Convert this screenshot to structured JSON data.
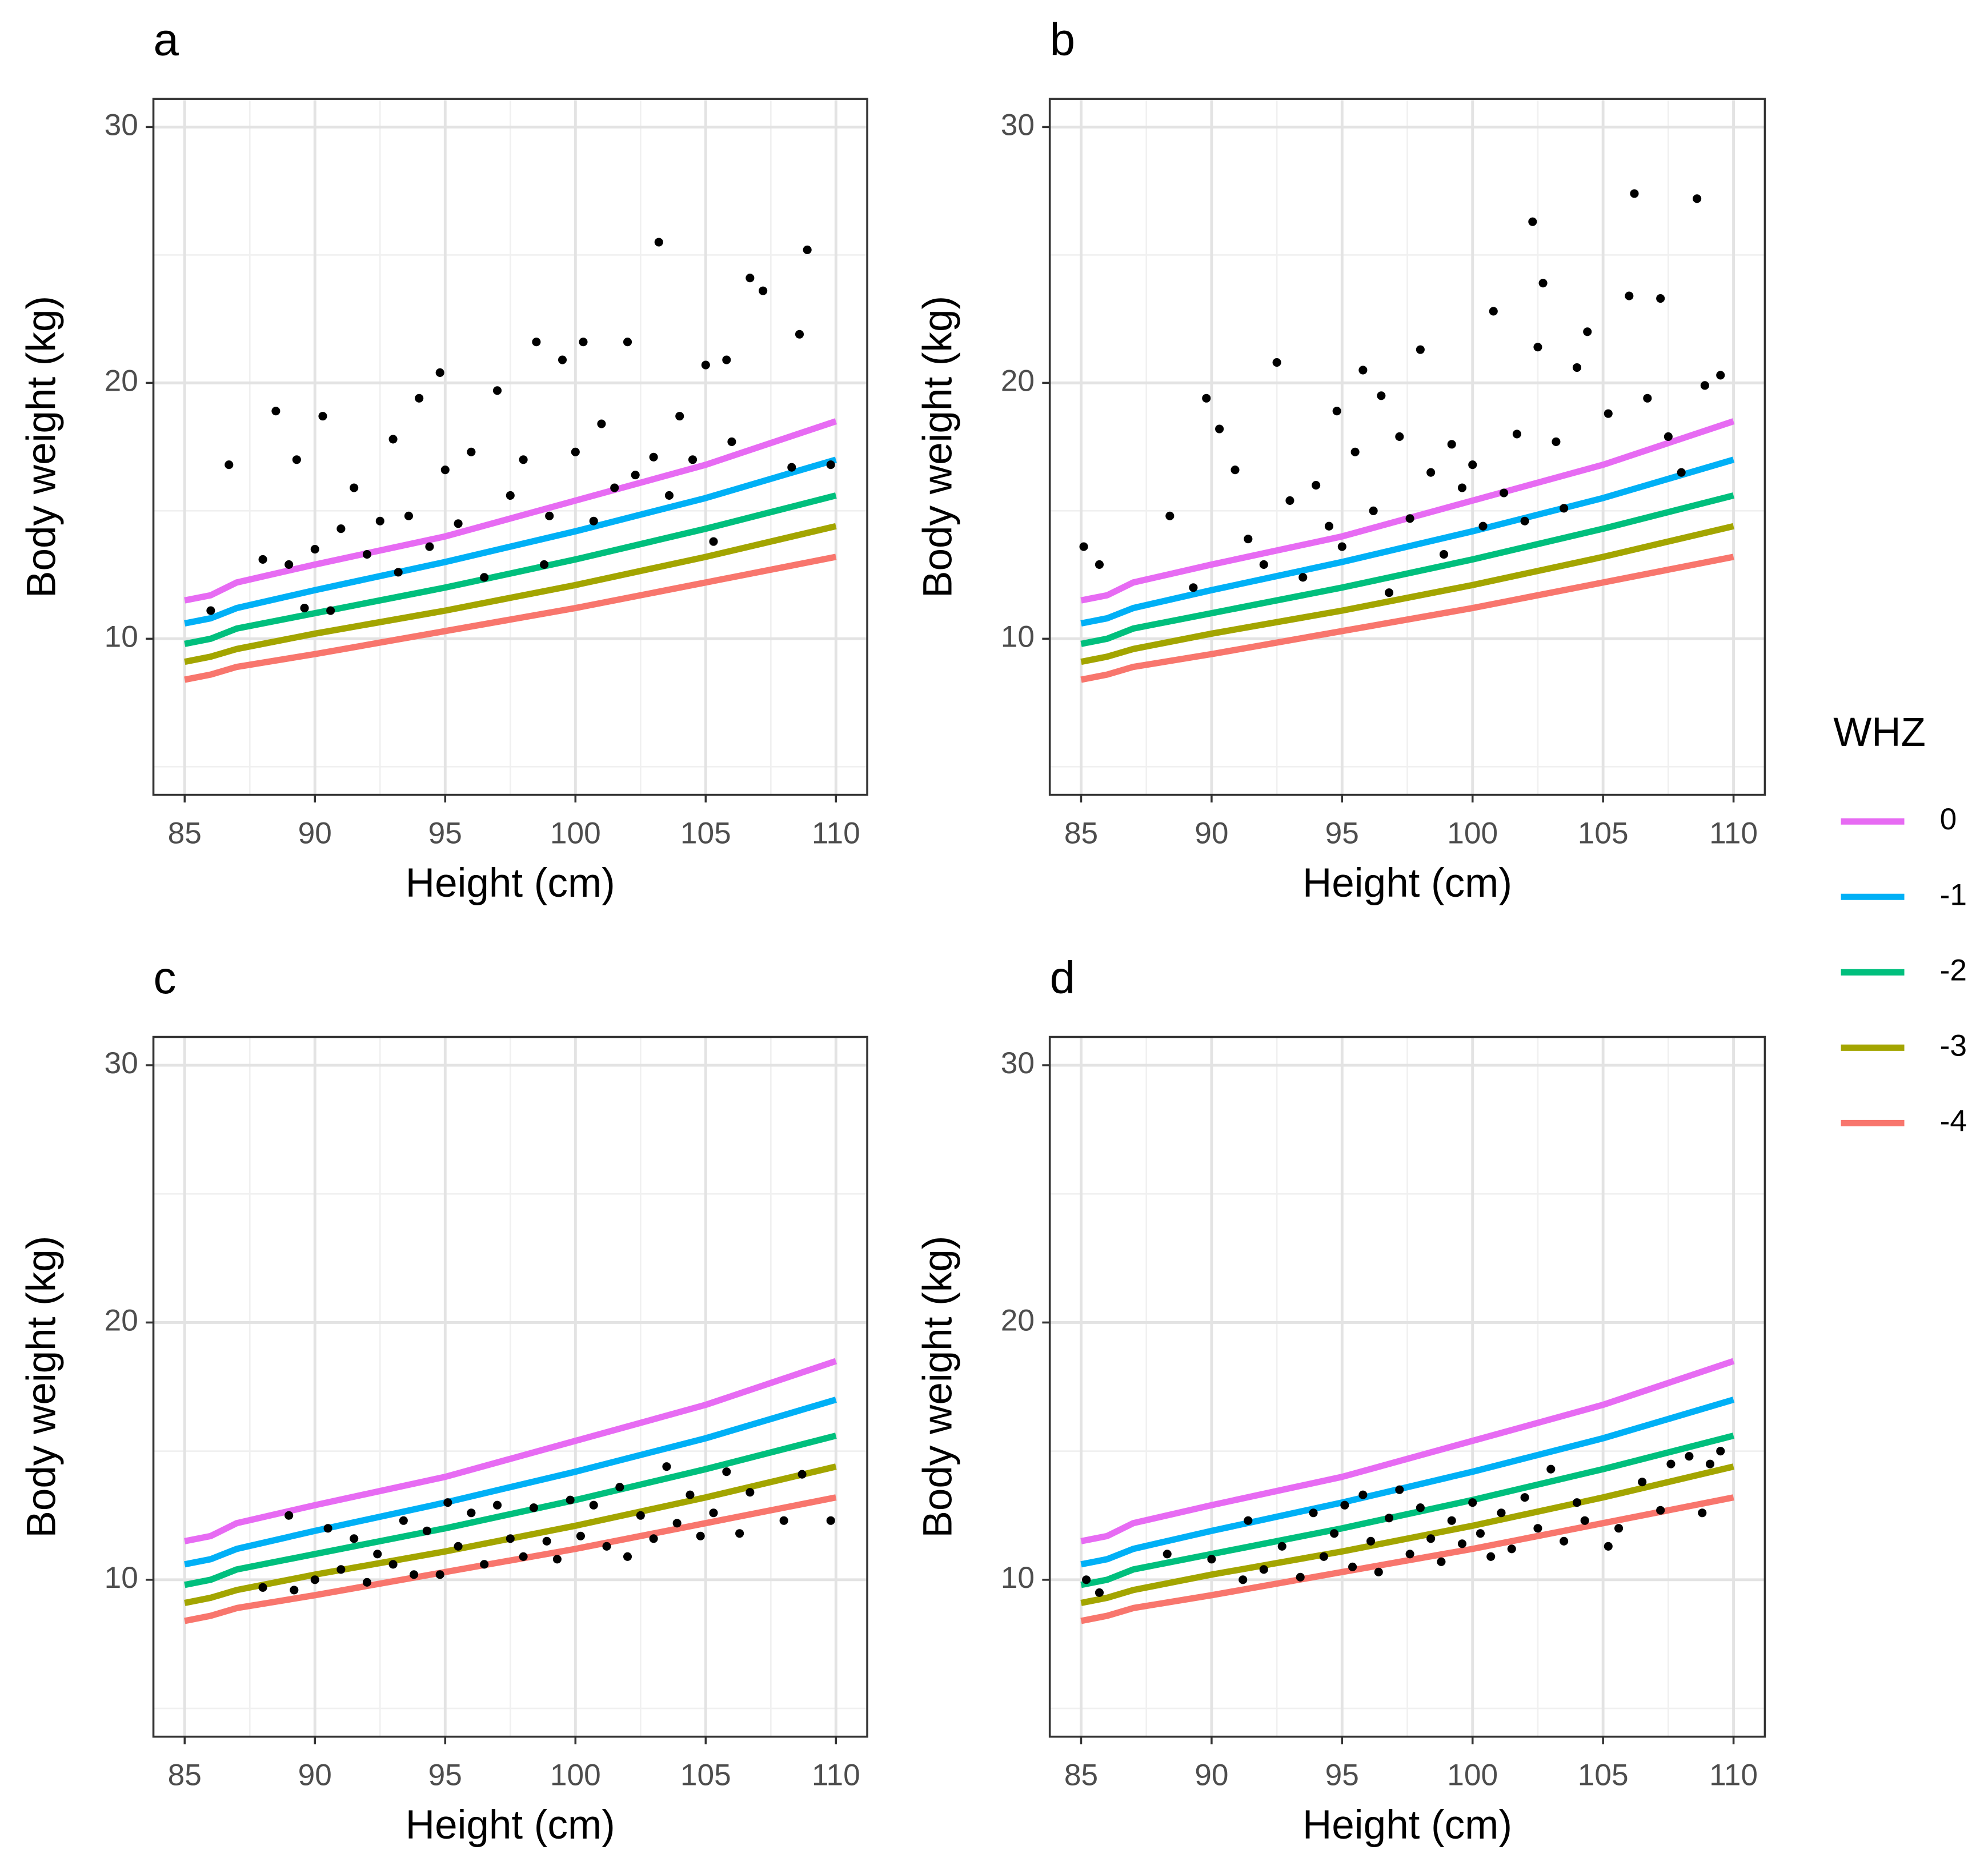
{
  "legend": {
    "title": "WHZ",
    "position": "right"
  },
  "chart_data": [
    {
      "type": "scatter",
      "title": "a",
      "xlabel": "Height (cm)",
      "ylabel": "Body weight (kg)",
      "xlim": [
        83.8,
        111.2
      ],
      "ylim": [
        3.9,
        31.1
      ],
      "xticks": [
        85,
        90,
        95,
        100,
        105,
        110
      ],
      "yticks": [
        10,
        20,
        30
      ],
      "grid": true,
      "x": [
        85,
        86,
        87,
        90,
        95,
        100,
        105,
        110
      ],
      "series": [
        {
          "name": "0",
          "color": "#E76BF3",
          "values": [
            11.5,
            11.7,
            12.2,
            12.9,
            14.0,
            15.4,
            16.8,
            18.5
          ]
        },
        {
          "name": "-1",
          "color": "#00B0F6",
          "values": [
            10.6,
            10.8,
            11.2,
            11.9,
            13.0,
            14.2,
            15.5,
            17.0
          ]
        },
        {
          "name": "-2",
          "color": "#00BF7D",
          "values": [
            9.8,
            10.0,
            10.4,
            11.0,
            12.0,
            13.1,
            14.3,
            15.6
          ]
        },
        {
          "name": "-3",
          "color": "#A3A500",
          "values": [
            9.1,
            9.3,
            9.6,
            10.2,
            11.1,
            12.1,
            13.2,
            14.4
          ]
        },
        {
          "name": "-4",
          "color": "#F8766D",
          "values": [
            8.4,
            8.6,
            8.9,
            9.4,
            10.3,
            11.2,
            12.2,
            13.2
          ]
        }
      ],
      "points": {
        "color": "#000000",
        "x": [
          86,
          86.7,
          88,
          88.5,
          89,
          89.3,
          89.6,
          90,
          90.3,
          90.6,
          91,
          91.5,
          92,
          92.5,
          93,
          93.2,
          93.6,
          94,
          94.4,
          94.8,
          95,
          95.5,
          96,
          96.5,
          97,
          97.5,
          98,
          98.5,
          98.8,
          99,
          99.5,
          100,
          100.3,
          100.7,
          101,
          101.5,
          102,
          102.3,
          103,
          103.2,
          103.6,
          104,
          104.5,
          105,
          105.3,
          105.8,
          106,
          106.7,
          107.2,
          108.3,
          108.6,
          108.9,
          109.8
        ],
        "y": [
          11.1,
          16.8,
          13.1,
          18.9,
          12.9,
          17.0,
          11.2,
          13.5,
          18.7,
          11.1,
          14.3,
          15.9,
          13.3,
          14.6,
          17.8,
          12.6,
          14.8,
          19.4,
          13.6,
          20.4,
          16.6,
          14.5,
          17.3,
          12.4,
          19.7,
          15.6,
          17.0,
          21.6,
          12.9,
          14.8,
          20.9,
          17.3,
          21.6,
          14.6,
          18.4,
          15.9,
          21.6,
          16.4,
          17.1,
          25.5,
          15.6,
          18.7,
          17.0,
          20.7,
          13.8,
          20.9,
          17.7,
          24.1,
          23.6,
          16.7,
          21.9,
          25.2,
          16.8
        ]
      }
    },
    {
      "type": "scatter",
      "title": "b",
      "xlabel": "Height (cm)",
      "ylabel": "Body weight (kg)",
      "xlim": [
        83.8,
        111.2
      ],
      "ylim": [
        3.9,
        31.1
      ],
      "xticks": [
        85,
        90,
        95,
        100,
        105,
        110
      ],
      "yticks": [
        10,
        20,
        30
      ],
      "grid": true,
      "x": [
        85,
        86,
        87,
        90,
        95,
        100,
        105,
        110
      ],
      "series": [
        {
          "name": "0",
          "color": "#E76BF3",
          "values": [
            11.5,
            11.7,
            12.2,
            12.9,
            14.0,
            15.4,
            16.8,
            18.5
          ]
        },
        {
          "name": "-1",
          "color": "#00B0F6",
          "values": [
            10.6,
            10.8,
            11.2,
            11.9,
            13.0,
            14.2,
            15.5,
            17.0
          ]
        },
        {
          "name": "-2",
          "color": "#00BF7D",
          "values": [
            9.8,
            10.0,
            10.4,
            11.0,
            12.0,
            13.1,
            14.3,
            15.6
          ]
        },
        {
          "name": "-3",
          "color": "#A3A500",
          "values": [
            9.1,
            9.3,
            9.6,
            10.2,
            11.1,
            12.1,
            13.2,
            14.4
          ]
        },
        {
          "name": "-4",
          "color": "#F8766D",
          "values": [
            8.4,
            8.6,
            8.9,
            9.4,
            10.3,
            11.2,
            12.2,
            13.2
          ]
        }
      ],
      "points": {
        "color": "#000000",
        "x": [
          85.1,
          85.7,
          88.4,
          89.3,
          89.8,
          90.3,
          90.9,
          91.4,
          92,
          92.5,
          93,
          93.5,
          94,
          94.5,
          94.8,
          95,
          95.5,
          95.8,
          96.2,
          96.5,
          96.8,
          97.2,
          97.6,
          98,
          98.4,
          98.9,
          99.2,
          99.6,
          100,
          100.4,
          100.8,
          101.2,
          101.7,
          102,
          102.3,
          102.5,
          102.7,
          103.2,
          103.5,
          104,
          104.4,
          105.2,
          106,
          106.2,
          106.7,
          107.2,
          107.5,
          108,
          108.6,
          108.9,
          109.5
        ],
        "y": [
          13.6,
          12.9,
          14.8,
          12.0,
          19.4,
          18.2,
          16.6,
          13.9,
          12.9,
          20.8,
          15.4,
          12.4,
          16.0,
          14.4,
          18.9,
          13.6,
          17.3,
          20.5,
          15.0,
          19.5,
          11.8,
          17.9,
          14.7,
          21.3,
          16.5,
          13.3,
          17.6,
          15.9,
          16.8,
          14.4,
          22.8,
          15.7,
          18.0,
          14.6,
          26.3,
          21.4,
          23.9,
          17.7,
          15.1,
          20.6,
          22.0,
          18.8,
          23.4,
          27.4,
          19.4,
          23.3,
          17.9,
          16.5,
          27.2,
          19.9,
          20.3
        ]
      }
    },
    {
      "type": "scatter",
      "title": "c",
      "xlabel": "Height (cm)",
      "ylabel": "Body weight (kg)",
      "xlim": [
        83.8,
        111.2
      ],
      "ylim": [
        3.9,
        31.1
      ],
      "xticks": [
        85,
        90,
        95,
        100,
        105,
        110
      ],
      "yticks": [
        10,
        20,
        30
      ],
      "grid": true,
      "x": [
        85,
        86,
        87,
        90,
        95,
        100,
        105,
        110
      ],
      "series": [
        {
          "name": "0",
          "color": "#E76BF3",
          "values": [
            11.5,
            11.7,
            12.2,
            12.9,
            14.0,
            15.4,
            16.8,
            18.5
          ]
        },
        {
          "name": "-1",
          "color": "#00B0F6",
          "values": [
            10.6,
            10.8,
            11.2,
            11.9,
            13.0,
            14.2,
            15.5,
            17.0
          ]
        },
        {
          "name": "-2",
          "color": "#00BF7D",
          "values": [
            9.8,
            10.0,
            10.4,
            11.0,
            12.0,
            13.1,
            14.3,
            15.6
          ]
        },
        {
          "name": "-3",
          "color": "#A3A500",
          "values": [
            9.1,
            9.3,
            9.6,
            10.2,
            11.1,
            12.1,
            13.2,
            14.4
          ]
        },
        {
          "name": "-4",
          "color": "#F8766D",
          "values": [
            8.4,
            8.6,
            8.9,
            9.4,
            10.3,
            11.2,
            12.2,
            13.2
          ]
        }
      ],
      "points": {
        "color": "#000000",
        "x": [
          88,
          89,
          89.2,
          90,
          90.5,
          91,
          91.5,
          92,
          92.4,
          93,
          93.4,
          93.8,
          94.3,
          94.8,
          95.1,
          95.5,
          96,
          96.5,
          97,
          97.5,
          98,
          98.4,
          98.9,
          99.3,
          99.8,
          100.2,
          100.7,
          101.2,
          101.7,
          102,
          102.5,
          103,
          103.5,
          103.9,
          104.4,
          104.8,
          105.3,
          105.8,
          106.3,
          106.7,
          108,
          108.7,
          109.8
        ],
        "y": [
          9.7,
          12.5,
          9.6,
          10.0,
          12.0,
          10.4,
          11.6,
          9.9,
          11.0,
          10.6,
          12.3,
          10.2,
          11.9,
          10.2,
          13.0,
          11.3,
          12.6,
          10.6,
          12.9,
          11.6,
          10.9,
          12.8,
          11.5,
          10.8,
          13.1,
          11.7,
          12.9,
          11.3,
          13.6,
          10.9,
          12.5,
          11.6,
          14.4,
          12.2,
          13.3,
          11.7,
          12.6,
          14.2,
          11.8,
          13.4,
          12.3,
          14.1,
          12.3
        ]
      }
    },
    {
      "type": "scatter",
      "title": "d",
      "xlabel": "Height (cm)",
      "ylabel": "Body weight (kg)",
      "xlim": [
        83.8,
        111.2
      ],
      "ylim": [
        3.9,
        31.1
      ],
      "xticks": [
        85,
        90,
        95,
        100,
        105,
        110
      ],
      "yticks": [
        10,
        20,
        30
      ],
      "grid": true,
      "x": [
        85,
        86,
        87,
        90,
        95,
        100,
        105,
        110
      ],
      "series": [
        {
          "name": "0",
          "color": "#E76BF3",
          "values": [
            11.5,
            11.7,
            12.2,
            12.9,
            14.0,
            15.4,
            16.8,
            18.5
          ]
        },
        {
          "name": "-1",
          "color": "#00B0F6",
          "values": [
            10.6,
            10.8,
            11.2,
            11.9,
            13.0,
            14.2,
            15.5,
            17.0
          ]
        },
        {
          "name": "-2",
          "color": "#00BF7D",
          "values": [
            9.8,
            10.0,
            10.4,
            11.0,
            12.0,
            13.1,
            14.3,
            15.6
          ]
        },
        {
          "name": "-3",
          "color": "#A3A500",
          "values": [
            9.1,
            9.3,
            9.6,
            10.2,
            11.1,
            12.1,
            13.2,
            14.4
          ]
        },
        {
          "name": "-4",
          "color": "#F8766D",
          "values": [
            8.4,
            8.6,
            8.9,
            9.4,
            10.3,
            11.2,
            12.2,
            13.2
          ]
        }
      ],
      "points": {
        "color": "#000000",
        "x": [
          85.2,
          85.7,
          88.3,
          90,
          91.2,
          91.4,
          92,
          92.7,
          93.4,
          93.9,
          94.3,
          94.7,
          95.1,
          95.4,
          95.8,
          96.1,
          96.4,
          96.8,
          97.2,
          97.6,
          98,
          98.4,
          98.8,
          99.2,
          99.6,
          100,
          100.3,
          100.7,
          101.1,
          101.5,
          102,
          102.5,
          103,
          103.5,
          104,
          104.3,
          105.2,
          105.6,
          106.5,
          107.2,
          107.6,
          108.3,
          108.8,
          109.1,
          109.5
        ],
        "y": [
          10.0,
          9.5,
          11.0,
          10.8,
          10.0,
          12.3,
          10.4,
          11.3,
          10.1,
          12.6,
          10.9,
          11.8,
          12.9,
          10.5,
          13.3,
          11.5,
          10.3,
          12.4,
          13.5,
          11.0,
          12.8,
          11.6,
          10.7,
          12.3,
          11.4,
          13.0,
          11.8,
          10.9,
          12.6,
          11.2,
          13.2,
          12.0,
          14.3,
          11.5,
          13.0,
          12.3,
          11.3,
          12.0,
          13.8,
          12.7,
          14.5,
          14.8,
          12.6,
          14.5,
          15.0
        ]
      }
    }
  ]
}
